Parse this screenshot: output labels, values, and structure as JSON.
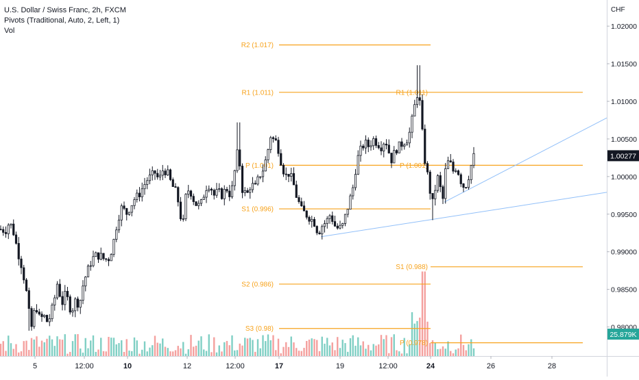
{
  "legend": {
    "symbol": "U.S. Dollar / Swiss Franc, 2h, FXCM",
    "indicator": "Pivots (Traditional, Auto, 2, Left, 1)",
    "volume": "Vol"
  },
  "colors": {
    "up": "#26a69a",
    "down": "#ef5350",
    "candle": "#131722",
    "pivot": "#f7a21b",
    "trend": "#90bff9",
    "vol_up": "#7fcfc4",
    "vol_down": "#f4a09e"
  },
  "chart_data": {
    "type": "candlestick",
    "title": "U.S. Dollar / Swiss Franc, 2h, FXCM",
    "currency_label": "CHF",
    "y_ticks": [
      "1.02000",
      "1.01500",
      "1.01000",
      "1.00500",
      "1.00000",
      "0.99500",
      "0.99000",
      "0.98500",
      "0.98000"
    ],
    "ylim": [
      0.9775,
      1.0222
    ],
    "x_ticks": [
      "5",
      "12:00",
      "10",
      "12",
      "12:00",
      "17",
      "19",
      "12:00",
      "24",
      "26",
      "28"
    ],
    "last_price": "1.00277",
    "last_volume": "25.879K",
    "close_path": [
      [
        0,
        0.993
      ],
      [
        8,
        0.9928
      ],
      [
        14,
        0.994
      ],
      [
        20,
        0.9925
      ],
      [
        26,
        0.99
      ],
      [
        32,
        0.988
      ],
      [
        38,
        0.985
      ],
      [
        42,
        0.982
      ],
      [
        46,
        0.98
      ],
      [
        52,
        0.983
      ],
      [
        58,
        0.981
      ],
      [
        64,
        0.9815
      ],
      [
        70,
        0.9805
      ],
      [
        78,
        0.983
      ],
      [
        84,
        0.986
      ],
      [
        90,
        0.983
      ],
      [
        96,
        0.9845
      ],
      [
        104,
        0.982
      ],
      [
        110,
        0.9835
      ],
      [
        116,
        0.983
      ],
      [
        122,
        0.986
      ],
      [
        128,
        0.9875
      ],
      [
        134,
        0.989
      ],
      [
        140,
        0.9895
      ],
      [
        146,
        0.9895
      ],
      [
        152,
        0.989
      ],
      [
        158,
        0.989
      ],
      [
        162,
        0.99
      ],
      [
        166,
        0.9915
      ],
      [
        170,
        0.9935
      ],
      [
        174,
        0.995
      ],
      [
        178,
        0.996
      ],
      [
        184,
        0.995
      ],
      [
        190,
        0.996
      ],
      [
        196,
        0.997
      ],
      [
        202,
        0.9975
      ],
      [
        208,
        0.9985
      ],
      [
        214,
        0.9995
      ],
      [
        220,
        1.0
      ],
      [
        226,
        1.0005
      ],
      [
        232,
        0.9995
      ],
      [
        238,
        1.001
      ],
      [
        244,
        1.0005
      ],
      [
        250,
        0.999
      ],
      [
        256,
        0.998
      ],
      [
        262,
        0.996
      ],
      [
        266,
        0.9925
      ],
      [
        270,
        0.997
      ],
      [
        276,
        0.9985
      ],
      [
        282,
        0.997
      ],
      [
        288,
        0.996
      ],
      [
        294,
        0.9965
      ],
      [
        300,
        0.9985
      ],
      [
        306,
        0.999
      ],
      [
        312,
        0.9975
      ],
      [
        318,
        0.998
      ],
      [
        324,
        0.9975
      ],
      [
        330,
        0.9985
      ],
      [
        336,
        0.9975
      ],
      [
        340,
        0.999
      ],
      [
        344,
        1.002
      ],
      [
        348,
        1.004
      ],
      [
        352,
        0.9985
      ],
      [
        356,
        0.998
      ],
      [
        360,
        0.9975
      ],
      [
        366,
        0.999
      ],
      [
        372,
        0.9985
      ],
      [
        378,
        1.0
      ],
      [
        384,
        1.001
      ],
      [
        390,
        1.003
      ],
      [
        394,
        1.0055
      ],
      [
        398,
        1.005
      ],
      [
        404,
        1.0045
      ],
      [
        410,
        1.002
      ],
      [
        416,
        1.0
      ],
      [
        422,
        1.0005
      ],
      [
        428,
        0.999
      ],
      [
        432,
        0.9975
      ],
      [
        436,
        0.9965
      ],
      [
        440,
        0.9955
      ],
      [
        446,
        0.995
      ],
      [
        452,
        0.9945
      ],
      [
        458,
        0.994
      ],
      [
        464,
        0.9925
      ],
      [
        470,
        0.9935
      ],
      [
        476,
        0.994
      ],
      [
        482,
        0.995
      ],
      [
        488,
        0.9935
      ],
      [
        494,
        0.993
      ],
      [
        500,
        0.9935
      ],
      [
        506,
        0.9955
      ],
      [
        512,
        0.9975
      ],
      [
        516,
        0.999
      ],
      [
        520,
        1.002
      ],
      [
        526,
        1.0035
      ],
      [
        532,
        1.0045
      ],
      [
        538,
        1.004
      ],
      [
        544,
        1.005
      ],
      [
        550,
        1.0045
      ],
      [
        556,
        1.004
      ],
      [
        562,
        1.005
      ],
      [
        568,
        1.003
      ],
      [
        572,
        1.002
      ],
      [
        576,
        1.0035
      ],
      [
        582,
        1.004
      ],
      [
        588,
        1.0045
      ],
      [
        594,
        1.005
      ],
      [
        598,
        1.006
      ],
      [
        602,
        1.008
      ],
      [
        606,
        1.01
      ],
      [
        610,
        1.0115
      ],
      [
        614,
        1.0085
      ],
      [
        618,
        1.003
      ],
      [
        622,
        1.001
      ],
      [
        626,
        0.999
      ],
      [
        630,
        0.996
      ],
      [
        634,
        0.998
      ],
      [
        638,
        1.0
      ],
      [
        642,
        0.9985
      ],
      [
        646,
        0.997
      ],
      [
        650,
        1.001
      ],
      [
        654,
        1.002
      ],
      [
        658,
        1.0015
      ],
      [
        662,
        1.0005
      ],
      [
        666,
        1.0015
      ],
      [
        670,
        1.0
      ],
      [
        674,
        0.999
      ],
      [
        678,
        0.9985
      ],
      [
        682,
        0.9995
      ],
      [
        686,
        1.001
      ],
      [
        690,
        1.0025
      ],
      [
        692,
        1.0028
      ]
    ],
    "volume_height_range": [
      0.05,
      1.0
    ],
    "pivot_levels": [
      {
        "label": "R2 (1.017)",
        "value": 1.0175,
        "x_start": 407,
        "x_end": 628
      },
      {
        "label": "R1 (1.011)",
        "value": 1.0112,
        "x_start": 407,
        "x_end": 628
      },
      {
        "label": "P (1.001)",
        "value": 1.0015,
        "x_start": 407,
        "x_end": 628,
        "label_visible": "P (1.001)"
      },
      {
        "label": "S1 (0.996)",
        "value": 0.9957,
        "x_start": 407,
        "x_end": 628
      },
      {
        "label": "S2 (0.986)",
        "value": 0.9857,
        "x_start": 407,
        "x_end": 628
      },
      {
        "label": "S3 (0.98)",
        "value": 0.9798,
        "x_start": 407,
        "x_end": 628
      },
      {
        "label": "R1 (1.011)",
        "value": 1.0112,
        "x_start": 628,
        "x_end": 850,
        "side": "right"
      },
      {
        "label": "P (1.001)",
        "value": 1.0015,
        "x_start": 628,
        "x_end": 850,
        "side": "right"
      },
      {
        "label": "S1 (0.988)",
        "value": 0.988,
        "x_start": 628,
        "x_end": 850,
        "side": "right"
      },
      {
        "label": "P (0.978)",
        "value": 0.9779,
        "x_start": 628,
        "x_end": 850,
        "side": "right"
      }
    ],
    "trend_lines": [
      {
        "from": [
          468,
          0.992
        ],
        "to": [
          885,
          0.9979
        ]
      },
      {
        "from": [
          648,
          0.9966
        ],
        "to": [
          885,
          1.0078
        ]
      }
    ]
  }
}
